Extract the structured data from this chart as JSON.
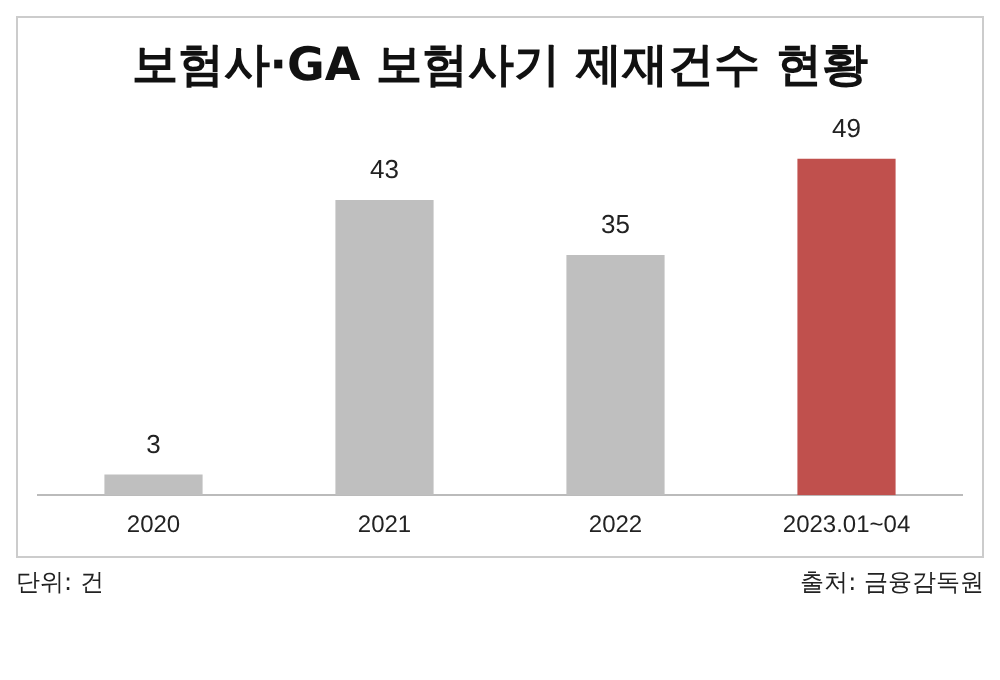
{
  "chart_data": {
    "type": "bar",
    "title": "보험사·GA 보험사기 제재건수 현황",
    "categories": [
      "2020",
      "2021",
      "2022",
      "2023.01~04"
    ],
    "values": [
      3,
      43,
      35,
      49
    ],
    "colors": [
      "#bfbfbf",
      "#bfbfbf",
      "#bfbfbf",
      "#c0504d"
    ],
    "data_labels": true,
    "grid": false,
    "legend": false,
    "tick_labels": "x",
    "annotations": [
      "단위: 건",
      "출처: 금융감독원"
    ]
  }
}
